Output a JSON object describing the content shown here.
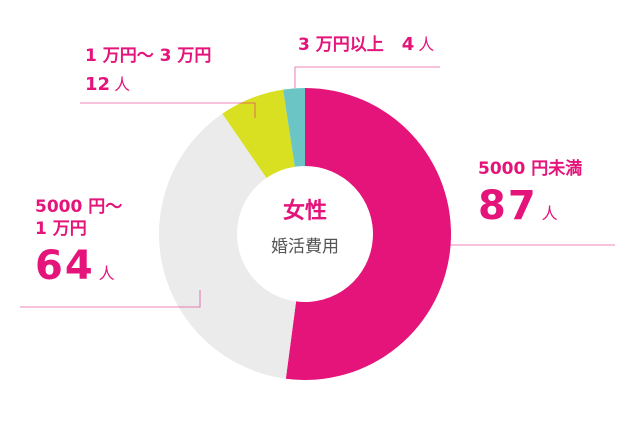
{
  "chart_data": {
    "type": "donut",
    "title": "女性",
    "subtitle": "婚活費用",
    "categories": [
      "5000 円未満",
      "5000 円〜\n1 万円",
      "1 万円〜 3 万円",
      "3 万円以上"
    ],
    "values": [
      87,
      64,
      12,
      4
    ],
    "unit": "人",
    "colors": [
      "#e4147a",
      "#ebebeb",
      "#d9e021",
      "#6cc5c5"
    ]
  }
}
